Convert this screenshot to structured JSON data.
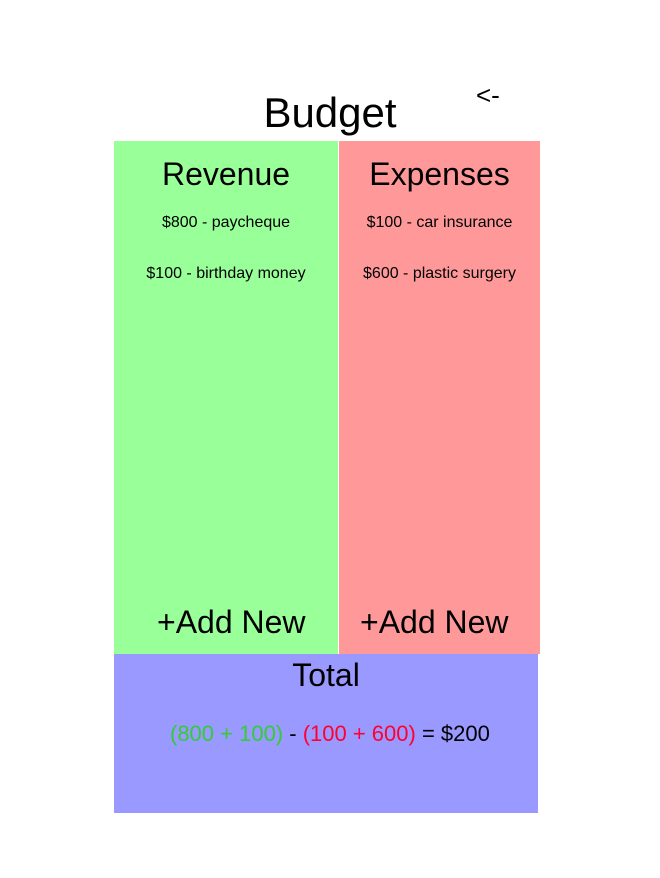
{
  "header": {
    "title": "Budget",
    "back_label": "<-"
  },
  "revenue": {
    "heading": "Revenue",
    "items": [
      {
        "label": "$800 - paycheque"
      },
      {
        "label": "$100 - birthday money"
      }
    ],
    "add_label": "+Add New"
  },
  "expenses": {
    "heading": "Expenses",
    "items": [
      {
        "label": "$100 - car insurance"
      },
      {
        "label": "$600 - plastic surgery"
      }
    ],
    "add_label": "+Add New"
  },
  "total": {
    "title": "Total",
    "revenue_sum": "(800 + 100)",
    "minus": " - ",
    "expense_sum": "(100 + 600)",
    "result": " = $200"
  },
  "colors": {
    "revenue_panel": "#99ff99",
    "expenses_panel": "#ff9999",
    "total_panel": "#9999ff",
    "revenue_text": "#33cc33",
    "expense_text": "#ff0033"
  }
}
